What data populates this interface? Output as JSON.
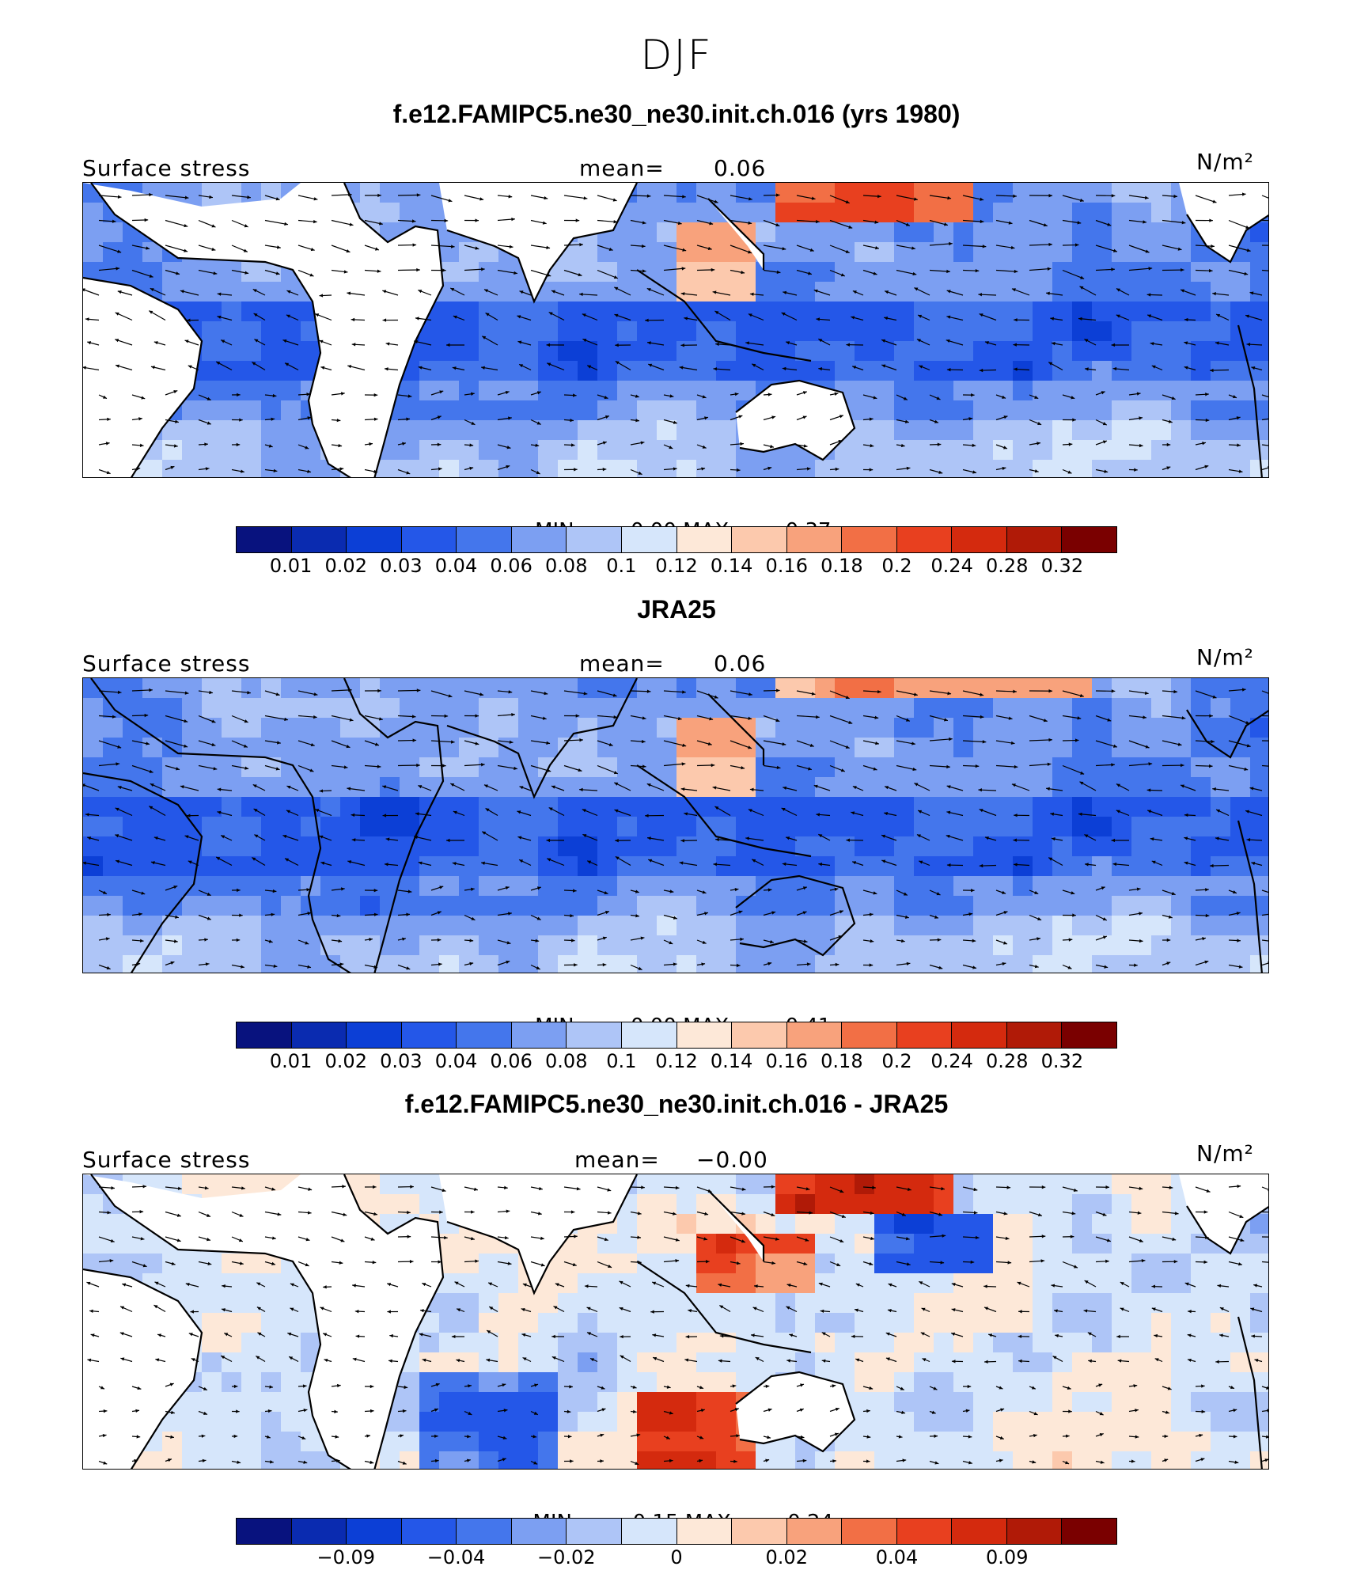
{
  "figure_title": "DJF",
  "colors": {
    "ramp": [
      "#08127e",
      "#0a2bb0",
      "#0c3fd6",
      "#2457e8",
      "#4476ec",
      "#7c9ff2",
      "#aec5f7",
      "#d6e6fb",
      "#fde8d8",
      "#fcc9ad",
      "#f8a27c",
      "#f26f45",
      "#e8401f",
      "#d42a0e",
      "#b01a07",
      "#7a0000"
    ],
    "land": "#ffffff",
    "coast": "#000000",
    "arrow": "#000000"
  },
  "panels": [
    {
      "title": "f.e12.FAMIPC5.ne30_ne30.init.ch.016 (yrs 1980)",
      "field": "Surface stress",
      "mean_label": "mean=",
      "mean_value": "0.06",
      "units": "N/m²",
      "min_label": "MIN =",
      "min_value": "0.00",
      "max_label": "MAX =",
      "max_value": "0.37",
      "colorbar_ticks": [
        "0.01",
        "0.02",
        "0.03",
        "0.04",
        "0.06",
        "0.08",
        "0.1",
        "0.12",
        "0.14",
        "0.16",
        "0.18",
        "0.2",
        "0.24",
        "0.28",
        "0.32"
      ]
    },
    {
      "title": "JRA25",
      "field": "Surface stress",
      "mean_label": "mean=",
      "mean_value": "0.06",
      "units": "N/m²",
      "min_label": "MIN =",
      "min_value": "0.00",
      "max_label": "MAX =",
      "max_value": "0.41",
      "colorbar_ticks": [
        "0.01",
        "0.02",
        "0.03",
        "0.04",
        "0.06",
        "0.08",
        "0.1",
        "0.12",
        "0.14",
        "0.16",
        "0.18",
        "0.2",
        "0.24",
        "0.28",
        "0.32"
      ]
    },
    {
      "title": "f.e12.FAMIPC5.ne30_ne30.init.ch.016 - JRA25",
      "field": "Surface stress",
      "mean_label": "mean=",
      "mean_value": "−0.00",
      "units": "N/m²",
      "min_label": "MIN =",
      "min_value": "−0.15",
      "max_label": "MAX =",
      "max_value": "0.24",
      "colorbar_ticks": [
        "−0.09",
        "−0.04",
        "−0.02",
        "0",
        "0.02",
        "0.04",
        "0.09"
      ]
    }
  ],
  "chart_data": [
    {
      "type": "heatmap",
      "title": "f.e12.FAMIPC5.ne30_ne30.init.ch.016 (yrs 1980)",
      "variable": "Surface stress",
      "units": "N/m²",
      "mean": 0.06,
      "min": 0.0,
      "max": 0.37,
      "levels": [
        0.01,
        0.02,
        0.03,
        0.04,
        0.06,
        0.08,
        0.1,
        0.12,
        0.14,
        0.16,
        0.18,
        0.2,
        0.24,
        0.28,
        0.32
      ],
      "overlay": "wind stress vectors"
    },
    {
      "type": "heatmap",
      "title": "JRA25",
      "variable": "Surface stress",
      "units": "N/m²",
      "mean": 0.06,
      "min": 0.0,
      "max": 0.41,
      "levels": [
        0.01,
        0.02,
        0.03,
        0.04,
        0.06,
        0.08,
        0.1,
        0.12,
        0.14,
        0.16,
        0.18,
        0.2,
        0.24,
        0.28,
        0.32
      ],
      "overlay": "wind stress vectors"
    },
    {
      "type": "heatmap",
      "title": "f.e12.FAMIPC5.ne30_ne30.init.ch.016 - JRA25",
      "variable": "Surface stress",
      "units": "N/m²",
      "mean": -0.0,
      "min": -0.15,
      "max": 0.24,
      "tick_labels": [
        -0.09,
        -0.04,
        -0.02,
        0,
        0.02,
        0.04,
        0.09
      ],
      "overlay": "wind stress difference vectors"
    }
  ]
}
